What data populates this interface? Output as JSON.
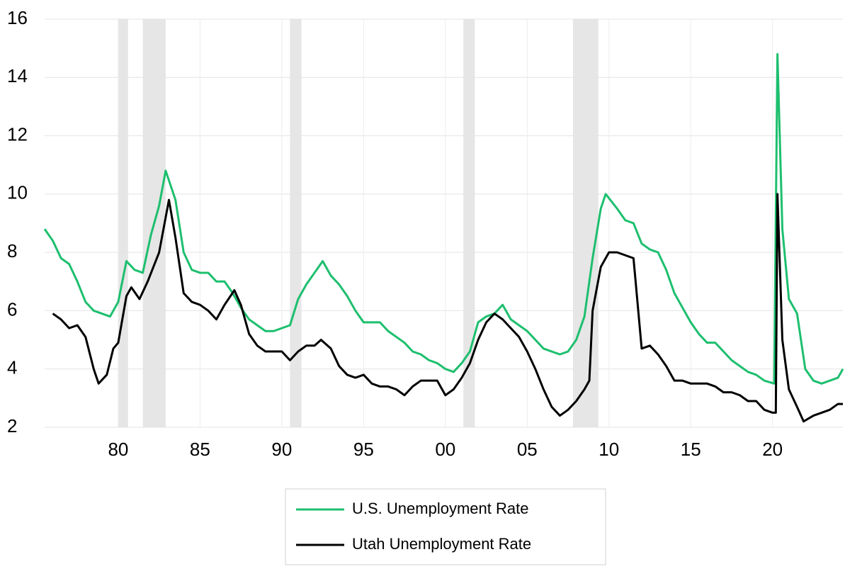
{
  "chart_data": {
    "type": "line",
    "xlim": [
      1975.5,
      2024.3
    ],
    "xticks": [
      {
        "value": 1980,
        "label": "80"
      },
      {
        "value": 1985,
        "label": "85"
      },
      {
        "value": 1990,
        "label": "90"
      },
      {
        "value": 1995,
        "label": "95"
      },
      {
        "value": 2000,
        "label": "00"
      },
      {
        "value": 2005,
        "label": "05"
      },
      {
        "value": 2010,
        "label": "10"
      },
      {
        "value": 2015,
        "label": "15"
      },
      {
        "value": 2020,
        "label": "20"
      }
    ],
    "ylim": [
      2,
      16
    ],
    "yticks": [
      2,
      4,
      6,
      8,
      10,
      12,
      14,
      16
    ],
    "grid": true,
    "legend": "bottom",
    "recessions": [
      {
        "start": 1980.0,
        "end": 1980.6
      },
      {
        "start": 1981.5,
        "end": 1982.9
      },
      {
        "start": 1990.5,
        "end": 1991.2
      },
      {
        "start": 2001.1,
        "end": 2001.8
      },
      {
        "start": 2007.8,
        "end": 2009.35
      }
    ],
    "series": [
      {
        "name": "U.S. Unemployment Rate",
        "color": "#1dbf6e",
        "x": [
          1975.5,
          1976.0,
          1976.5,
          1977.0,
          1977.5,
          1978.0,
          1978.5,
          1979.0,
          1979.5,
          1980.0,
          1980.5,
          1981.0,
          1981.5,
          1982.0,
          1982.5,
          1982.9,
          1983.5,
          1984.0,
          1984.5,
          1985.0,
          1985.5,
          1986.0,
          1986.5,
          1987.0,
          1987.5,
          1988.0,
          1988.5,
          1989.0,
          1989.5,
          1990.0,
          1990.5,
          1991.0,
          1991.5,
          1992.0,
          1992.5,
          1993.0,
          1993.5,
          1994.0,
          1994.5,
          1995.0,
          1995.5,
          1996.0,
          1996.5,
          1997.0,
          1997.5,
          1998.0,
          1998.5,
          1999.0,
          1999.5,
          2000.0,
          2000.5,
          2001.0,
          2001.5,
          2002.0,
          2002.5,
          2003.0,
          2003.5,
          2004.0,
          2004.5,
          2005.0,
          2005.5,
          2006.0,
          2006.5,
          2007.0,
          2007.5,
          2008.0,
          2008.5,
          2009.0,
          2009.5,
          2009.8,
          2010.5,
          2011.0,
          2011.5,
          2012.0,
          2012.5,
          2013.0,
          2013.5,
          2014.0,
          2014.5,
          2015.0,
          2015.5,
          2016.0,
          2016.5,
          2017.0,
          2017.5,
          2018.0,
          2018.5,
          2019.0,
          2019.5,
          2020.1,
          2020.3,
          2020.6,
          2021.0,
          2021.5,
          2022.0,
          2022.5,
          2023.0,
          2023.5,
          2024.0,
          2024.3
        ],
        "values": [
          8.8,
          8.4,
          7.8,
          7.6,
          7.0,
          6.3,
          6.0,
          5.9,
          5.8,
          6.3,
          7.7,
          7.4,
          7.3,
          8.6,
          9.6,
          10.8,
          9.8,
          8.0,
          7.4,
          7.3,
          7.3,
          7.0,
          7.0,
          6.6,
          6.1,
          5.7,
          5.5,
          5.3,
          5.3,
          5.4,
          5.5,
          6.4,
          6.9,
          7.3,
          7.7,
          7.2,
          6.9,
          6.5,
          6.0,
          5.6,
          5.6,
          5.6,
          5.3,
          5.1,
          4.9,
          4.6,
          4.5,
          4.3,
          4.2,
          4.0,
          3.9,
          4.2,
          4.6,
          5.6,
          5.8,
          5.9,
          6.2,
          5.7,
          5.5,
          5.3,
          5.0,
          4.7,
          4.6,
          4.5,
          4.6,
          5.0,
          5.8,
          7.8,
          9.5,
          10.0,
          9.5,
          9.1,
          9.0,
          8.3,
          8.1,
          8.0,
          7.4,
          6.6,
          6.1,
          5.6,
          5.2,
          4.9,
          4.9,
          4.6,
          4.3,
          4.1,
          3.9,
          3.8,
          3.6,
          3.5,
          14.8,
          8.8,
          6.4,
          5.9,
          4.0,
          3.6,
          3.5,
          3.6,
          3.7,
          4.0
        ]
      },
      {
        "name": "Utah Unemployment Rate",
        "color": "#000000",
        "x": [
          1976.0,
          1976.5,
          1977.0,
          1977.5,
          1978.0,
          1978.5,
          1978.8,
          1979.3,
          1979.7,
          1980.0,
          1980.5,
          1980.8,
          1981.3,
          1981.8,
          1982.5,
          1983.1,
          1983.5,
          1984.0,
          1984.5,
          1985.0,
          1985.5,
          1986.0,
          1986.5,
          1987.1,
          1987.5,
          1988.0,
          1988.5,
          1989.0,
          1989.5,
          1990.0,
          1990.5,
          1991.0,
          1991.5,
          1992.0,
          1992.4,
          1993.0,
          1993.5,
          1994.0,
          1994.5,
          1995.0,
          1995.5,
          1996.0,
          1996.5,
          1997.0,
          1997.5,
          1998.0,
          1998.5,
          1999.0,
          1999.5,
          2000.0,
          2000.5,
          2001.0,
          2001.5,
          2002.0,
          2002.5,
          2003.0,
          2003.5,
          2004.0,
          2004.5,
          2005.0,
          2005.5,
          2006.0,
          2006.5,
          2007.0,
          2007.5,
          2008.0,
          2008.5,
          2008.8,
          2009.0,
          2009.5,
          2010.0,
          2010.5,
          2011.0,
          2011.5,
          2012.0,
          2012.5,
          2013.0,
          2013.5,
          2014.0,
          2014.5,
          2015.0,
          2015.5,
          2016.0,
          2016.5,
          2017.0,
          2017.5,
          2018.0,
          2018.5,
          2019.0,
          2019.5,
          2020.0,
          2020.2,
          2020.3,
          2020.6,
          2021.0,
          2021.5,
          2021.9,
          2022.5,
          2023.0,
          2023.5,
          2024.0,
          2024.3
        ],
        "values": [
          5.9,
          5.7,
          5.4,
          5.5,
          5.1,
          4.0,
          3.5,
          3.8,
          4.7,
          4.9,
          6.5,
          6.8,
          6.4,
          7.0,
          8.0,
          9.8,
          8.5,
          6.6,
          6.3,
          6.2,
          6.0,
          5.7,
          6.2,
          6.7,
          6.2,
          5.2,
          4.8,
          4.6,
          4.6,
          4.6,
          4.3,
          4.6,
          4.8,
          4.8,
          5.0,
          4.7,
          4.1,
          3.8,
          3.7,
          3.8,
          3.5,
          3.4,
          3.4,
          3.3,
          3.1,
          3.4,
          3.6,
          3.6,
          3.6,
          3.1,
          3.3,
          3.7,
          4.2,
          5.0,
          5.6,
          5.9,
          5.7,
          5.4,
          5.1,
          4.6,
          4.0,
          3.3,
          2.7,
          2.4,
          2.6,
          2.9,
          3.3,
          3.6,
          6.0,
          7.5,
          8.0,
          8.0,
          7.9,
          7.8,
          4.7,
          4.8,
          4.5,
          4.1,
          3.6,
          3.6,
          3.5,
          3.5,
          3.5,
          3.4,
          3.2,
          3.2,
          3.1,
          2.9,
          2.9,
          2.6,
          2.5,
          2.5,
          10.0,
          5.0,
          3.3,
          2.7,
          2.2,
          2.4,
          2.5,
          2.6,
          2.8,
          2.8
        ]
      }
    ]
  }
}
